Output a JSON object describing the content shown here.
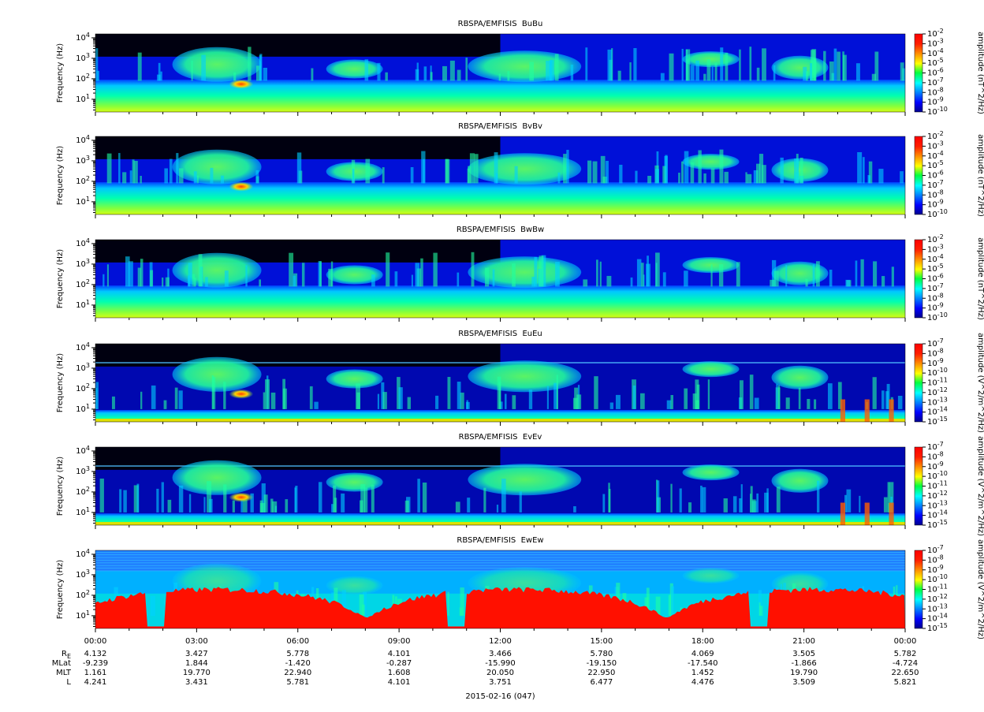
{
  "chart_data": [
    {
      "type": "spectrogram",
      "title": "RBSPA/EMFISIS  BuBu",
      "ylabel": "Frequency (Hz)",
      "ylim": [
        2.4,
        15500
      ],
      "yticks": [
        {
          "value": 10,
          "label": "10",
          "exponent": "1"
        },
        {
          "value": 100,
          "label": "10",
          "exponent": "2"
        },
        {
          "value": 1000,
          "label": "10",
          "exponent": "3"
        },
        {
          "value": 10000,
          "label": "10",
          "exponent": "4"
        }
      ],
      "colorbar_label": "amplitude (nT^2/Hz)",
      "clim": [
        1e-10,
        0.01
      ],
      "colormap": "jet",
      "scene": "magnetic",
      "cticks": [
        {
          "value": 0.01,
          "label": "10",
          "exponent": "-2"
        },
        {
          "value": 0.001,
          "label": "10",
          "exponent": "-3"
        },
        {
          "value": 0.0001,
          "label": "10",
          "exponent": "-4"
        },
        {
          "value": 1e-05,
          "label": "10",
          "exponent": "-5"
        },
        {
          "value": 1e-06,
          "label": "10",
          "exponent": "-6"
        },
        {
          "value": 1e-07,
          "label": "10",
          "exponent": "-7"
        },
        {
          "value": 1e-08,
          "label": "10",
          "exponent": "-8"
        },
        {
          "value": 1e-09,
          "label": "10",
          "exponent": "-9"
        },
        {
          "value": 1e-10,
          "label": "10",
          "exponent": "-10"
        }
      ]
    },
    {
      "type": "spectrogram",
      "title": "RBSPA/EMFISIS  BvBv",
      "ylabel": "Frequency (Hz)",
      "ylim": [
        2.4,
        15500
      ],
      "yticks": [
        {
          "value": 10,
          "label": "10",
          "exponent": "1"
        },
        {
          "value": 100,
          "label": "10",
          "exponent": "2"
        },
        {
          "value": 1000,
          "label": "10",
          "exponent": "3"
        },
        {
          "value": 10000,
          "label": "10",
          "exponent": "4"
        }
      ],
      "colorbar_label": "amplitude (nT^2/Hz)",
      "clim": [
        1e-10,
        0.01
      ],
      "colormap": "jet",
      "scene": "magnetic",
      "cticks": [
        {
          "value": 0.01,
          "label": "10",
          "exponent": "-2"
        },
        {
          "value": 0.001,
          "label": "10",
          "exponent": "-3"
        },
        {
          "value": 0.0001,
          "label": "10",
          "exponent": "-4"
        },
        {
          "value": 1e-05,
          "label": "10",
          "exponent": "-5"
        },
        {
          "value": 1e-06,
          "label": "10",
          "exponent": "-6"
        },
        {
          "value": 1e-07,
          "label": "10",
          "exponent": "-7"
        },
        {
          "value": 1e-08,
          "label": "10",
          "exponent": "-8"
        },
        {
          "value": 1e-09,
          "label": "10",
          "exponent": "-9"
        },
        {
          "value": 1e-10,
          "label": "10",
          "exponent": "-10"
        }
      ]
    },
    {
      "type": "spectrogram",
      "title": "RBSPA/EMFISIS  BwBw",
      "ylabel": "Frequency (Hz)",
      "ylim": [
        2.4,
        15500
      ],
      "yticks": [
        {
          "value": 10,
          "label": "10",
          "exponent": "1"
        },
        {
          "value": 100,
          "label": "10",
          "exponent": "2"
        },
        {
          "value": 1000,
          "label": "10",
          "exponent": "3"
        },
        {
          "value": 10000,
          "label": "10",
          "exponent": "4"
        }
      ],
      "colorbar_label": "amplitude (nT^2/Hz)",
      "clim": [
        1e-10,
        0.01
      ],
      "colormap": "jet",
      "scene": "magnetic-w",
      "cticks": [
        {
          "value": 0.01,
          "label": "10",
          "exponent": "-2"
        },
        {
          "value": 0.001,
          "label": "10",
          "exponent": "-3"
        },
        {
          "value": 0.0001,
          "label": "10",
          "exponent": "-4"
        },
        {
          "value": 1e-05,
          "label": "10",
          "exponent": "-5"
        },
        {
          "value": 1e-06,
          "label": "10",
          "exponent": "-6"
        },
        {
          "value": 1e-07,
          "label": "10",
          "exponent": "-7"
        },
        {
          "value": 1e-08,
          "label": "10",
          "exponent": "-8"
        },
        {
          "value": 1e-09,
          "label": "10",
          "exponent": "-9"
        },
        {
          "value": 1e-10,
          "label": "10",
          "exponent": "-10"
        }
      ]
    },
    {
      "type": "spectrogram",
      "title": "RBSPA/EMFISIS  EuEu",
      "ylabel": "Frequency (Hz)",
      "ylim": [
        2.4,
        15500
      ],
      "yticks": [
        {
          "value": 10,
          "label": "10",
          "exponent": "1"
        },
        {
          "value": 100,
          "label": "10",
          "exponent": "2"
        },
        {
          "value": 1000,
          "label": "10",
          "exponent": "3"
        },
        {
          "value": 10000,
          "label": "10",
          "exponent": "4"
        }
      ],
      "colorbar_label": "amplitude (V^2/m^2/Hz)",
      "clim": [
        1e-15,
        1e-07
      ],
      "colormap": "jet",
      "scene": "electric",
      "cticks": [
        {
          "value": 1e-07,
          "label": "10",
          "exponent": "-7"
        },
        {
          "value": 1e-08,
          "label": "10",
          "exponent": "-8"
        },
        {
          "value": 1e-09,
          "label": "10",
          "exponent": "-9"
        },
        {
          "value": 1e-10,
          "label": "10",
          "exponent": "-10"
        },
        {
          "value": 1e-11,
          "label": "10",
          "exponent": "-11"
        },
        {
          "value": 1e-12,
          "label": "10",
          "exponent": "-12"
        },
        {
          "value": 1e-13,
          "label": "10",
          "exponent": "-13"
        },
        {
          "value": 1e-14,
          "label": "10",
          "exponent": "-14"
        },
        {
          "value": 1e-15,
          "label": "10",
          "exponent": "-15"
        }
      ]
    },
    {
      "type": "spectrogram",
      "title": "RBSPA/EMFISIS  EvEv",
      "ylabel": "Frequency (Hz)",
      "ylim": [
        2.4,
        15500
      ],
      "yticks": [
        {
          "value": 10,
          "label": "10",
          "exponent": "1"
        },
        {
          "value": 100,
          "label": "10",
          "exponent": "2"
        },
        {
          "value": 1000,
          "label": "10",
          "exponent": "3"
        },
        {
          "value": 10000,
          "label": "10",
          "exponent": "4"
        }
      ],
      "colorbar_label": "amplitude (V^2/m^2/Hz)",
      "clim": [
        1e-15,
        1e-07
      ],
      "colormap": "jet",
      "scene": "electric",
      "cticks": [
        {
          "value": 1e-07,
          "label": "10",
          "exponent": "-7"
        },
        {
          "value": 1e-08,
          "label": "10",
          "exponent": "-8"
        },
        {
          "value": 1e-09,
          "label": "10",
          "exponent": "-9"
        },
        {
          "value": 1e-10,
          "label": "10",
          "exponent": "-10"
        },
        {
          "value": 1e-11,
          "label": "10",
          "exponent": "-11"
        },
        {
          "value": 1e-12,
          "label": "10",
          "exponent": "-12"
        },
        {
          "value": 1e-13,
          "label": "10",
          "exponent": "-13"
        },
        {
          "value": 1e-14,
          "label": "10",
          "exponent": "-14"
        },
        {
          "value": 1e-15,
          "label": "10",
          "exponent": "-15"
        }
      ]
    },
    {
      "type": "spectrogram",
      "title": "RBSPA/EMFISIS  EwEw",
      "ylabel": "Frequency (Hz)",
      "ylim": [
        2.4,
        15500
      ],
      "yticks": [
        {
          "value": 10,
          "label": "10",
          "exponent": "1"
        },
        {
          "value": 100,
          "label": "10",
          "exponent": "2"
        },
        {
          "value": 1000,
          "label": "10",
          "exponent": "3"
        },
        {
          "value": 10000,
          "label": "10",
          "exponent": "4"
        }
      ],
      "colorbar_label": "amplitude (V^2/m^2/Hz)",
      "clim": [
        1e-15,
        1e-07
      ],
      "colormap": "jet",
      "scene": "electric-w",
      "cticks": [
        {
          "value": 1e-07,
          "label": "10",
          "exponent": "-7"
        },
        {
          "value": 1e-08,
          "label": "10",
          "exponent": "-8"
        },
        {
          "value": 1e-09,
          "label": "10",
          "exponent": "-9"
        },
        {
          "value": 1e-10,
          "label": "10",
          "exponent": "-10"
        },
        {
          "value": 1e-11,
          "label": "10",
          "exponent": "-11"
        },
        {
          "value": 1e-12,
          "label": "10",
          "exponent": "-12"
        },
        {
          "value": 1e-13,
          "label": "10",
          "exponent": "-13"
        },
        {
          "value": 1e-14,
          "label": "10",
          "exponent": "-14"
        },
        {
          "value": 1e-15,
          "label": "10",
          "exponent": "-15"
        }
      ]
    }
  ],
  "time_axis": {
    "xticks": [
      "00:00",
      "03:00",
      "06:00",
      "09:00",
      "12:00",
      "15:00",
      "18:00",
      "21:00",
      "00:00"
    ],
    "date": "2015-02-16 (047)"
  },
  "ephemeris": [
    {
      "label": "R",
      "subscript": "E",
      "values": [
        "4.132",
        "3.427",
        "5.778",
        "4.101",
        "3.466",
        "5.780",
        "4.069",
        "3.505",
        "5.782"
      ]
    },
    {
      "label": "MLat",
      "values": [
        "-9.239",
        "1.844",
        "-1.420",
        "-0.287",
        "-15.990",
        "-19.150",
        "-17.540",
        "-1.866",
        "-4.724"
      ]
    },
    {
      "label": "MLT",
      "values": [
        "1.161",
        "19.770",
        "22.940",
        "1.608",
        "20.050",
        "22.950",
        "1.452",
        "19.790",
        "22.650"
      ]
    },
    {
      "label": "L",
      "values": [
        "4.241",
        "3.431",
        "5.781",
        "4.101",
        "3.751",
        "6.477",
        "4.476",
        "3.509",
        "5.821"
      ]
    }
  ]
}
